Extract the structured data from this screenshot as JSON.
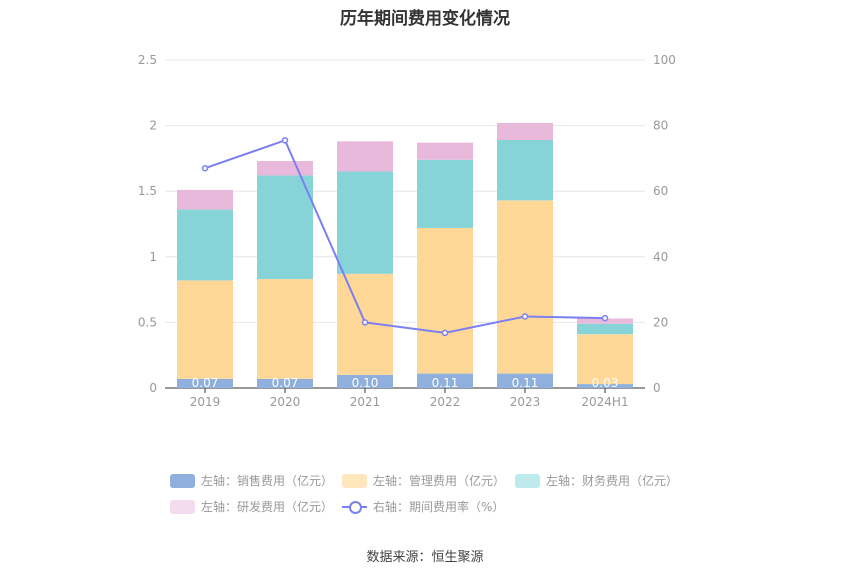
{
  "chart_data": {
    "type": "bar",
    "title": "历年期间费用变化情况",
    "categories": [
      "2019",
      "2020",
      "2021",
      "2022",
      "2023",
      "2024H1"
    ],
    "left_axis": {
      "ylim": [
        0,
        2.5
      ],
      "ticks": [
        "0",
        "0.5",
        "1",
        "1.5",
        "2",
        "2.5"
      ]
    },
    "right_axis": {
      "ylim": [
        0,
        100
      ],
      "ticks": [
        "0",
        "20",
        "40",
        "60",
        "80",
        "100"
      ]
    },
    "series": [
      {
        "name": "左轴：销售费用（亿元）",
        "axis": "left",
        "kind": "stacked-bar",
        "color": "#8fb0dc",
        "values": [
          0.07,
          0.07,
          0.1,
          0.11,
          0.11,
          0.03
        ],
        "labels": [
          "0.07",
          "0.07",
          "0.10",
          "0.11",
          "0.11",
          "0.03"
        ]
      },
      {
        "name": "左轴：管理费用（亿元）",
        "axis": "left",
        "kind": "stacked-bar",
        "color": "#ffd898",
        "values": [
          0.75,
          0.76,
          0.77,
          1.11,
          1.32,
          0.38
        ]
      },
      {
        "name": "左轴：财务费用（亿元）",
        "axis": "left",
        "kind": "stacked-bar",
        "color": "#86d4d8",
        "values": [
          0.54,
          0.79,
          0.78,
          0.52,
          0.46,
          0.08
        ]
      },
      {
        "name": "左轴：研发费用（亿元）",
        "axis": "left",
        "kind": "stacked-bar",
        "color": "#e9b9dc",
        "values": [
          0.15,
          0.11,
          0.23,
          0.13,
          0.13,
          0.04
        ]
      },
      {
        "name": "右轴：期间费用率（%）",
        "axis": "right",
        "kind": "line",
        "color": "#7b7ff0",
        "values": [
          67,
          75.5,
          20,
          16.8,
          21.8,
          21.3
        ]
      }
    ],
    "legend_swatches": [
      "#8fb0dc",
      "#ffe6bd",
      "#bfeaec",
      "#f3dcee"
    ]
  },
  "source": "数据来源：恒生聚源"
}
